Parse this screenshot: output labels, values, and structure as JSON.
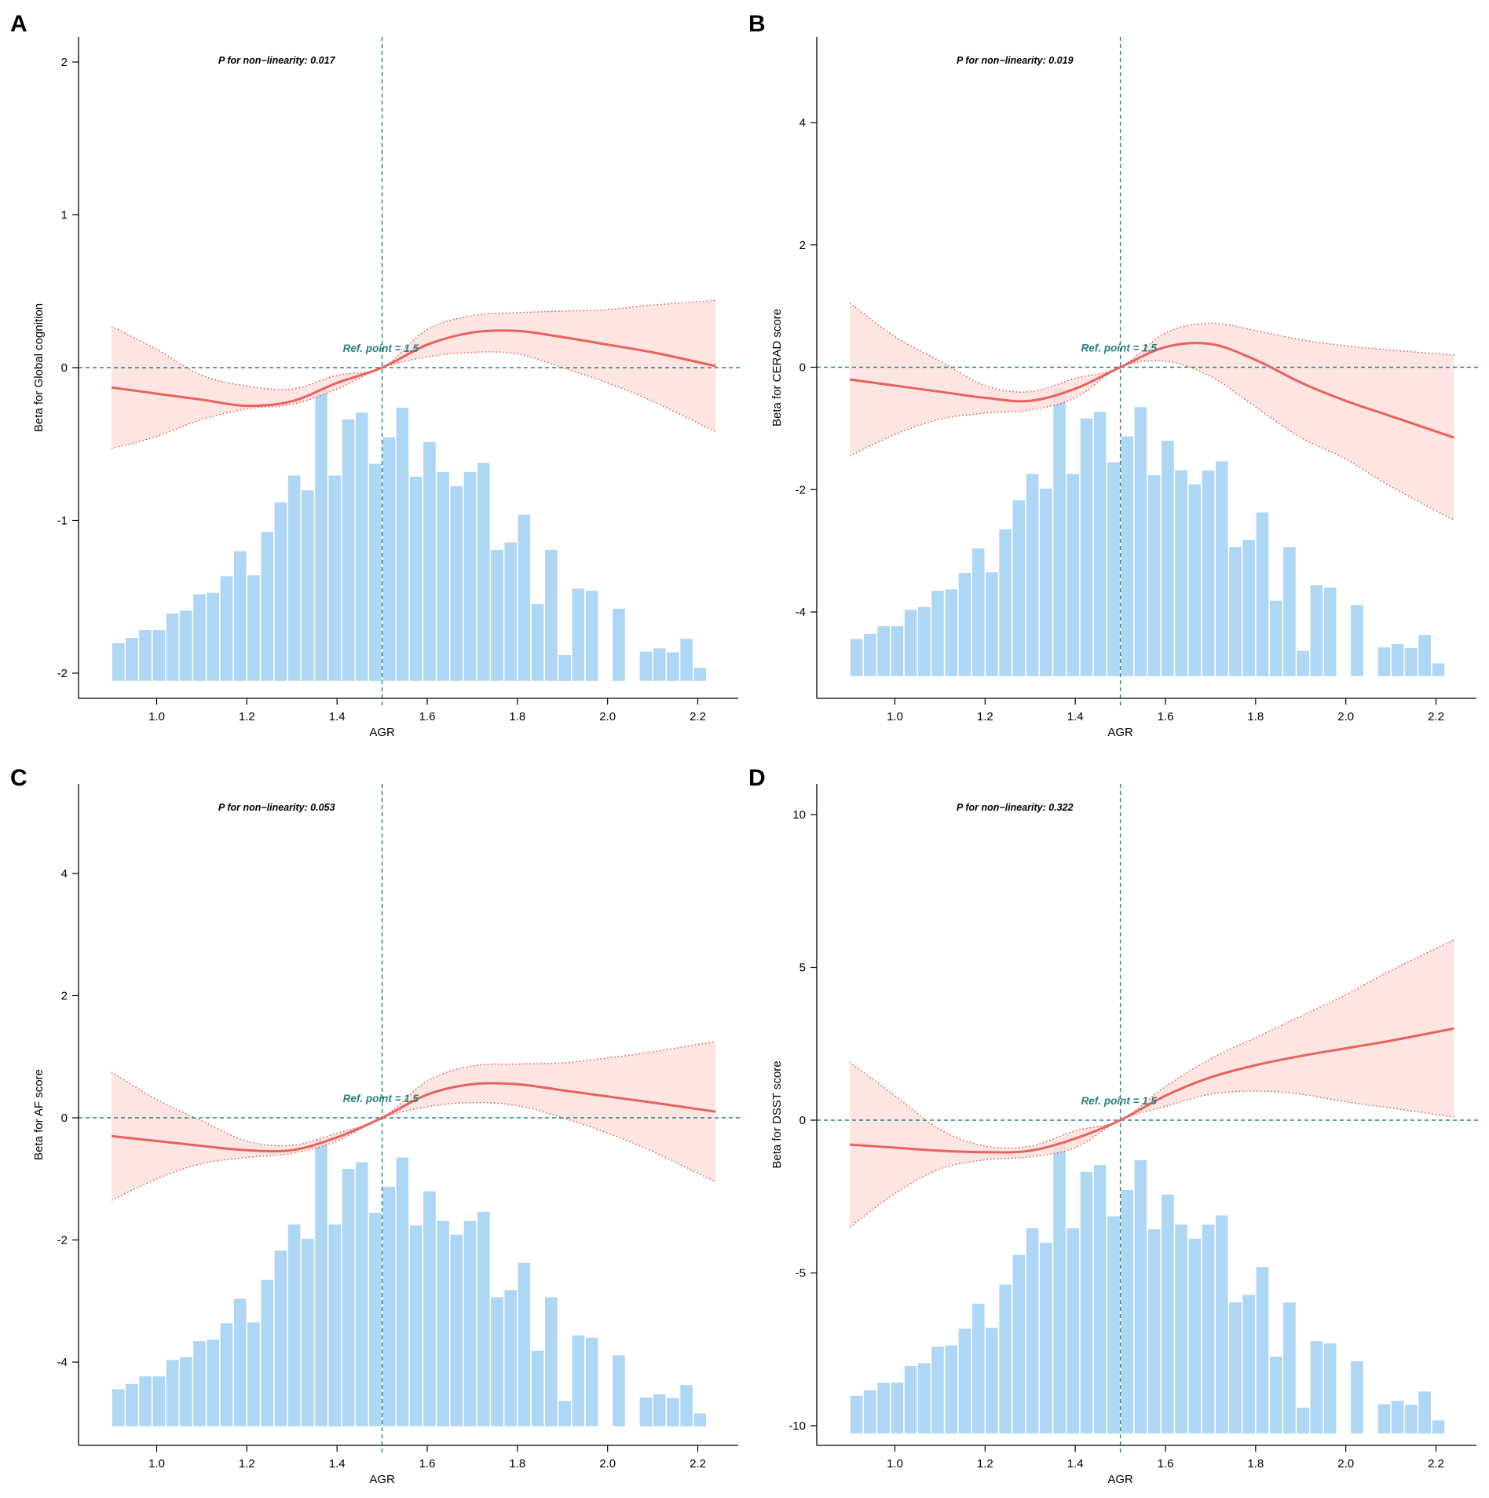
{
  "figure": {
    "colors": {
      "bars": "#aed6f5",
      "curve": "#e8625e",
      "band_fill": "#fde0dc",
      "band_border": "#d9534f",
      "ref_line": "#2a8080",
      "axis": "#000000"
    },
    "histogram_heights_relative": [
      0.102,
      0.121,
      0.148,
      0.148,
      0.207,
      0.217,
      0.275,
      0.28,
      0.339,
      0.427,
      0.342,
      0.495,
      0.6,
      0.694,
      0.642,
      1.0,
      0.694,
      0.893,
      0.917,
      0.736,
      0.829,
      0.934,
      0.69,
      0.813,
      0.707,
      0.657,
      0.707,
      0.739,
      0.432,
      0.458,
      0.556,
      0.24,
      0.432,
      0.06,
      0.295,
      0.287,
      0.0,
      0.224,
      0.0,
      0.072,
      0.084,
      0.07,
      0.117,
      0.015
    ]
  },
  "chart_data": [
    {
      "panel": "A",
      "type": "line",
      "subtype": "restricted cubic spline with confidence band and AGR histogram",
      "pvalue_text": "P for non−linearity: 0.017",
      "ref_label": "Ref. point = 1.5",
      "ref_x": 1.5,
      "xlabel": "AGR",
      "ylabel": "Beta for Global cognition",
      "xlim": [
        0.85,
        2.3
      ],
      "ylim": [
        -2.15,
        2.15
      ],
      "xticks": [
        "1.0",
        "1.2",
        "1.4",
        "1.6",
        "1.8",
        "2.0",
        "2.2"
      ],
      "yticks": [
        "-2",
        "-1",
        "0",
        "1",
        "2"
      ],
      "hist_base": -2.05,
      "hist_top": -0.14,
      "x": [
        0.9,
        1.0,
        1.1,
        1.2,
        1.3,
        1.4,
        1.5,
        1.6,
        1.7,
        1.8,
        1.9,
        2.0,
        2.1,
        2.24
      ],
      "fit": [
        -0.13,
        -0.17,
        -0.21,
        -0.25,
        -0.22,
        -0.1,
        0.0,
        0.15,
        0.23,
        0.24,
        0.2,
        0.15,
        0.1,
        0.01
      ],
      "lower": [
        -0.53,
        -0.45,
        -0.34,
        -0.27,
        -0.24,
        -0.14,
        0.0,
        0.07,
        0.1,
        0.09,
        0.0,
        -0.1,
        -0.22,
        -0.42
      ],
      "upper": [
        0.27,
        0.12,
        -0.05,
        -0.12,
        -0.14,
        -0.05,
        0.0,
        0.25,
        0.34,
        0.36,
        0.37,
        0.38,
        0.41,
        0.44
      ]
    },
    {
      "panel": "B",
      "type": "line",
      "subtype": "restricted cubic spline with confidence band and AGR histogram",
      "pvalue_text": "P for non−linearity: 0.019",
      "ref_label": "Ref. point = 1.5",
      "ref_x": 1.5,
      "xlabel": "AGR",
      "ylabel": "Beta for CERAD score",
      "xlim": [
        0.85,
        2.3
      ],
      "ylim": [
        -5.3,
        5.3
      ],
      "xticks": [
        "1.0",
        "1.2",
        "1.4",
        "1.6",
        "1.8",
        "2.0",
        "2.2"
      ],
      "yticks": [
        "-4",
        "-2",
        "0",
        "2",
        "4"
      ],
      "hist_base": -5.05,
      "hist_top": -0.35,
      "x": [
        0.9,
        1.0,
        1.1,
        1.2,
        1.3,
        1.4,
        1.5,
        1.6,
        1.7,
        1.8,
        1.9,
        2.0,
        2.1,
        2.24
      ],
      "fit": [
        -0.2,
        -0.3,
        -0.4,
        -0.5,
        -0.55,
        -0.35,
        0.0,
        0.33,
        0.38,
        0.12,
        -0.25,
        -0.55,
        -0.8,
        -1.15
      ],
      "lower": [
        -1.45,
        -1.1,
        -0.85,
        -0.75,
        -0.7,
        -0.5,
        0.0,
        0.1,
        -0.15,
        -0.65,
        -1.15,
        -1.5,
        -1.95,
        -2.5
      ],
      "upper": [
        1.05,
        0.5,
        0.1,
        -0.3,
        -0.4,
        -0.18,
        0.0,
        0.56,
        0.72,
        0.6,
        0.45,
        0.35,
        0.28,
        0.2
      ]
    },
    {
      "panel": "C",
      "type": "line",
      "subtype": "restricted cubic spline with confidence band and AGR histogram",
      "pvalue_text": "P for non−linearity: 0.053",
      "ref_label": "Ref. point = 1.5",
      "ref_x": 1.5,
      "xlabel": "AGR",
      "ylabel": "Beta for AF score",
      "xlim": [
        0.85,
        2.3
      ],
      "ylim": [
        -5.3,
        5.3
      ],
      "xticks": [
        "1.0",
        "1.2",
        "1.4",
        "1.6",
        "1.8",
        "2.0",
        "2.2"
      ],
      "yticks": [
        "-4",
        "-2",
        "0",
        "2",
        "4"
      ],
      "hist_base": -5.05,
      "hist_top": -0.35,
      "x": [
        0.9,
        1.0,
        1.1,
        1.2,
        1.3,
        1.4,
        1.5,
        1.6,
        1.7,
        1.8,
        1.9,
        2.0,
        2.1,
        2.24
      ],
      "fit": [
        -0.3,
        -0.38,
        -0.46,
        -0.53,
        -0.53,
        -0.32,
        0.0,
        0.38,
        0.55,
        0.55,
        0.45,
        0.35,
        0.25,
        0.1
      ],
      "lower": [
        -1.35,
        -1.0,
        -0.75,
        -0.65,
        -0.58,
        -0.38,
        0.0,
        0.18,
        0.25,
        0.2,
        0.0,
        -0.25,
        -0.55,
        -1.05
      ],
      "upper": [
        0.75,
        0.3,
        -0.05,
        -0.38,
        -0.45,
        -0.25,
        0.0,
        0.6,
        0.85,
        0.88,
        0.9,
        0.98,
        1.08,
        1.25
      ]
    },
    {
      "panel": "D",
      "type": "line",
      "subtype": "restricted cubic spline with confidence band and AGR histogram",
      "pvalue_text": "P for non−linearity: 0.322",
      "ref_label": "Ref. point = 1.5",
      "ref_x": 1.5,
      "xlabel": "AGR",
      "ylabel": "Beta for DSST score",
      "xlim": [
        0.85,
        2.3
      ],
      "ylim": [
        -10.8,
        10.8
      ],
      "xticks": [
        "1.0",
        "1.2",
        "1.4",
        "1.6",
        "1.8",
        "2.0",
        "2.2"
      ],
      "yticks": [
        "-10",
        "-5",
        "0",
        "5",
        "10"
      ],
      "hist_base": -10.25,
      "hist_top": -0.7,
      "x": [
        0.9,
        1.0,
        1.1,
        1.2,
        1.3,
        1.4,
        1.5,
        1.6,
        1.7,
        1.8,
        1.9,
        2.0,
        2.1,
        2.24
      ],
      "fit": [
        -0.8,
        -0.9,
        -1.0,
        -1.05,
        -1.0,
        -0.6,
        0.0,
        0.8,
        1.4,
        1.8,
        2.1,
        2.35,
        2.6,
        3.0
      ],
      "lower": [
        -3.5,
        -2.4,
        -1.6,
        -1.3,
        -1.2,
        -0.9,
        0.0,
        0.45,
        0.85,
        0.95,
        0.85,
        0.6,
        0.4,
        0.1
      ],
      "upper": [
        1.9,
        0.8,
        -0.3,
        -0.85,
        -0.85,
        -0.35,
        0.0,
        1.1,
        2.0,
        2.7,
        3.4,
        4.1,
        4.9,
        5.9
      ]
    }
  ]
}
